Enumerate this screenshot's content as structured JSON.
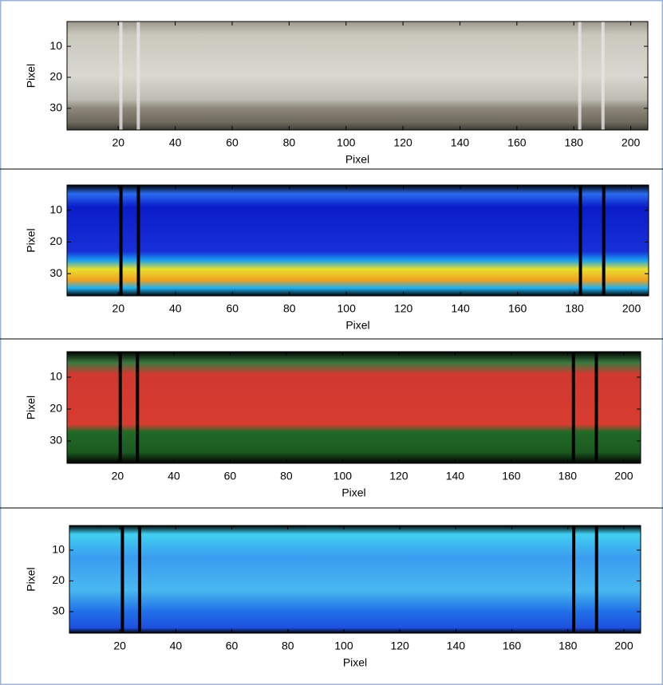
{
  "chart_data": [
    {
      "type": "image",
      "xlabel": "Pixel",
      "ylabel": "Pixel",
      "xlim": [
        2,
        206
      ],
      "ylim": [
        37,
        2
      ],
      "xticks": [
        20,
        40,
        60,
        80,
        100,
        120,
        140,
        160,
        180,
        200
      ],
      "yticks": [
        10,
        20,
        30
      ]
    },
    {
      "type": "image",
      "xlabel": "Pixel",
      "ylabel": "Pixel",
      "xlim": [
        2,
        206
      ],
      "ylim": [
        37,
        2
      ],
      "xticks": [
        20,
        40,
        60,
        80,
        100,
        120,
        140,
        160,
        180,
        200
      ],
      "yticks": [
        10,
        20,
        30
      ]
    },
    {
      "type": "image",
      "xlabel": "Pixel",
      "ylabel": "Pixel",
      "xlim": [
        2,
        206
      ],
      "ylim": [
        37,
        2
      ],
      "xticks": [
        20,
        40,
        60,
        80,
        100,
        120,
        140,
        160,
        180,
        200
      ],
      "yticks": [
        10,
        20,
        30
      ]
    },
    {
      "type": "image",
      "xlabel": "Pixel",
      "ylabel": "Pixel",
      "xlim": [
        2,
        206
      ],
      "ylim": [
        37,
        2
      ],
      "xticks": [
        20,
        40,
        60,
        80,
        100,
        120,
        140,
        160,
        180,
        200
      ],
      "yticks": [
        10,
        20,
        30
      ]
    }
  ]
}
